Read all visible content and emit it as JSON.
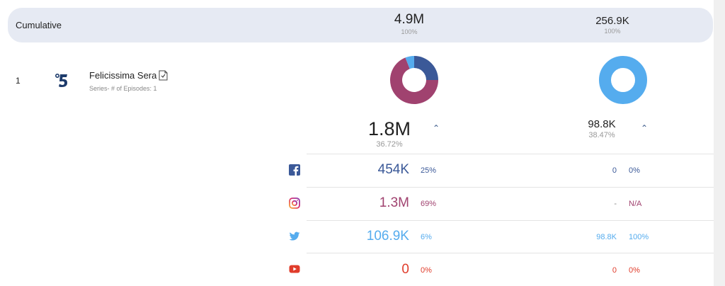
{
  "cumulative": {
    "label": "Cumulative",
    "col1": {
      "value": "4.9M",
      "pct": "100%"
    },
    "col2": {
      "value": "256.9K",
      "pct": "100%"
    }
  },
  "row": {
    "rank": "1",
    "title": "Felicissima Sera",
    "subtitle": "Series- # of Episodes: 1",
    "col1": {
      "value": "1.8M",
      "pct": "36.72%"
    },
    "col2": {
      "value": "98.8K",
      "pct": "38.47%"
    }
  },
  "platforms": [
    {
      "name": "facebook",
      "icon": "facebook-icon",
      "v1": "454K",
      "p1": "25%",
      "v2": "0",
      "p2": "0%"
    },
    {
      "name": "instagram",
      "icon": "instagram-icon",
      "v1": "1.3M",
      "p1": "69%",
      "v2": "-",
      "p2": "N/A"
    },
    {
      "name": "twitter",
      "icon": "twitter-icon",
      "v1": "106.9K",
      "p1": "6%",
      "v2": "98.8K",
      "p2": "100%"
    },
    {
      "name": "youtube",
      "icon": "youtube-icon",
      "v1": "0",
      "p1": "0%",
      "v2": "0",
      "p2": "0%"
    }
  ],
  "colors": {
    "facebook": "#3b5998",
    "instagram": "#a0426f",
    "twitter": "#55acee",
    "youtube": "#e03c2b"
  },
  "donuts": {
    "col1": [
      {
        "platform": "facebook",
        "share": 0.25
      },
      {
        "platform": "instagram",
        "share": 0.69
      },
      {
        "platform": "twitter",
        "share": 0.06
      }
    ],
    "col2": [
      {
        "platform": "twitter",
        "share": 1.0
      }
    ]
  }
}
